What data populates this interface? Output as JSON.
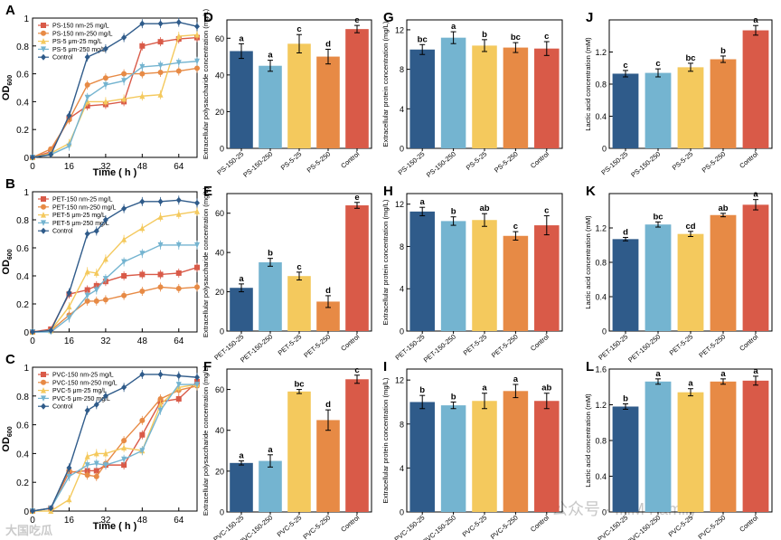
{
  "figure": {
    "colors": {
      "c1": "#2f5b8a",
      "c2": "#74b4d0",
      "c3": "#f4c95d",
      "c4": "#e78a45",
      "c5": "#d95a48"
    },
    "watermark": {
      "left": "大国吃瓜",
      "right": "公众号 · IHM Family"
    }
  },
  "chart_data": [
    {
      "panel": "A",
      "type": "line",
      "xlabel": "Time ( h )",
      "ylabel": "OD600",
      "ylim": [
        0,
        1.0
      ],
      "xlim": [
        0,
        72
      ],
      "xticks": [
        0,
        16,
        32,
        48,
        64
      ],
      "yticks": [
        0,
        0.2,
        0.4,
        0.6,
        0.8,
        1.0
      ],
      "x": [
        0,
        8,
        16,
        24,
        32,
        40,
        48,
        56,
        64,
        72
      ],
      "series": [
        {
          "name": "PS-150 nm-25 mg/L",
          "values": [
            0,
            0.04,
            0.28,
            0.37,
            0.38,
            0.4,
            0.8,
            0.83,
            0.85,
            0.86
          ]
        },
        {
          "name": "PS-150 nm-250 mg/L",
          "values": [
            0,
            0.06,
            0.27,
            0.52,
            0.57,
            0.6,
            0.6,
            0.61,
            0.62,
            0.64
          ]
        },
        {
          "name": "PS-5 μm-25 mg/L",
          "values": [
            0,
            0.03,
            0.1,
            0.4,
            0.4,
            0.42,
            0.44,
            0.45,
            0.87,
            0.88
          ]
        },
        {
          "name": "PS-5 μm-250 mg/L",
          "values": [
            0,
            0.02,
            0.08,
            0.43,
            0.52,
            0.55,
            0.65,
            0.66,
            0.68,
            0.69
          ]
        },
        {
          "name": "Control",
          "values": [
            0,
            0.02,
            0.3,
            0.72,
            0.78,
            0.86,
            0.96,
            0.96,
            0.97,
            0.94
          ]
        }
      ]
    },
    {
      "panel": "B",
      "type": "line",
      "xlabel": "",
      "ylabel": "OD600",
      "ylim": [
        0,
        1.0
      ],
      "xlim": [
        0,
        72
      ],
      "xticks": [
        0,
        16,
        32,
        48,
        64
      ],
      "yticks": [
        0,
        0.2,
        0.4,
        0.6,
        0.8,
        1.0
      ],
      "x": [
        0,
        8,
        16,
        24,
        28,
        32,
        40,
        48,
        56,
        64,
        72
      ],
      "series": [
        {
          "name": "PET-150 nm-25 mg/L",
          "values": [
            0,
            0.02,
            0.27,
            0.3,
            0.33,
            0.36,
            0.4,
            0.41,
            0.41,
            0.42,
            0.46
          ]
        },
        {
          "name": "PET-150 nm-250 mg/L",
          "values": [
            0,
            0.01,
            0.12,
            0.22,
            0.22,
            0.23,
            0.26,
            0.29,
            0.32,
            0.31,
            0.32
          ]
        },
        {
          "name": "PET-5 μm-25 mg/L",
          "values": [
            0,
            0.01,
            0.18,
            0.43,
            0.42,
            0.52,
            0.66,
            0.74,
            0.82,
            0.84,
            0.86
          ]
        },
        {
          "name": "PET-5 μm-250 mg/L",
          "values": [
            0,
            0.0,
            0.1,
            0.26,
            0.3,
            0.38,
            0.5,
            0.56,
            0.62,
            0.62,
            0.62
          ]
        },
        {
          "name": "Control",
          "values": [
            0,
            0.01,
            0.28,
            0.7,
            0.72,
            0.8,
            0.88,
            0.93,
            0.93,
            0.94,
            0.92
          ]
        }
      ]
    },
    {
      "panel": "C",
      "type": "line",
      "xlabel": "Time ( h )",
      "ylabel": "OD600",
      "ylim": [
        0,
        1.0
      ],
      "xlim": [
        0,
        72
      ],
      "xticks": [
        0,
        16,
        32,
        48,
        64
      ],
      "yticks": [
        0,
        0.2,
        0.4,
        0.6,
        0.8,
        1.0
      ],
      "x": [
        0,
        8,
        16,
        24,
        28,
        32,
        40,
        48,
        56,
        64,
        72
      ],
      "series": [
        {
          "name": "PVC-150 nm-25 mg/L",
          "values": [
            0,
            0.02,
            0.27,
            0.28,
            0.28,
            0.32,
            0.32,
            0.53,
            0.76,
            0.78,
            0.9
          ]
        },
        {
          "name": "PVC-150 nm-250 mg/L",
          "values": [
            0,
            0.02,
            0.28,
            0.25,
            0.24,
            0.33,
            0.49,
            0.63,
            0.78,
            0.84,
            0.87
          ]
        },
        {
          "name": "PVC-5 μm-25 mg/L",
          "values": [
            0,
            0.0,
            0.08,
            0.38,
            0.4,
            0.4,
            0.44,
            0.42,
            0.74,
            0.86,
            0.88
          ]
        },
        {
          "name": "PVC-5 μm-250 mg/L",
          "values": [
            0,
            0.02,
            0.24,
            0.32,
            0.33,
            0.32,
            0.36,
            0.42,
            0.7,
            0.88,
            0.88
          ]
        },
        {
          "name": "Control",
          "values": [
            0,
            0.02,
            0.3,
            0.7,
            0.74,
            0.8,
            0.86,
            0.95,
            0.95,
            0.94,
            0.93
          ]
        }
      ]
    },
    {
      "panel": "D",
      "type": "bar",
      "ylabel": "Extracellular polysaccharide concentration (mg/L)",
      "ylim": [
        0,
        70
      ],
      "yticks": [
        0,
        20,
        40,
        60
      ],
      "categories": [
        "PS-150-25",
        "PS-150-250",
        "PS-5-25",
        "PS-5-250",
        "Control"
      ],
      "values": [
        53,
        45,
        57,
        50,
        65
      ],
      "errors": [
        4,
        3,
        5,
        4,
        2
      ],
      "letters": [
        "a",
        "a",
        "c",
        "d",
        "e"
      ]
    },
    {
      "panel": "E",
      "type": "bar",
      "ylabel": "Extracellular polysaccharide concentration (mg/L)",
      "ylim": [
        0,
        70
      ],
      "yticks": [
        0,
        20,
        40,
        60
      ],
      "categories": [
        "PET-150-25",
        "PET-150-250",
        "PET-5-25",
        "PET-5-250",
        "Control"
      ],
      "values": [
        22,
        35,
        28,
        15,
        64
      ],
      "errors": [
        2,
        2,
        2,
        3,
        1.5
      ],
      "letters": [
        "a",
        "b",
        "c",
        "d",
        "e"
      ]
    },
    {
      "panel": "F",
      "type": "bar",
      "ylabel": "Extracellular polysaccharide concentration (mg/L)",
      "ylim": [
        0,
        70
      ],
      "yticks": [
        0,
        20,
        40,
        60
      ],
      "categories": [
        "PVC-150-25",
        "PVC-150-250",
        "PVC-5-25",
        "PVC-5-250",
        "Control"
      ],
      "values": [
        24,
        25,
        59,
        45,
        65
      ],
      "errors": [
        1,
        3,
        1,
        5,
        2
      ],
      "letters": [
        "a",
        "a",
        "bc",
        "d",
        "c"
      ]
    },
    {
      "panel": "G",
      "type": "bar",
      "ylabel": "Extracellular protein concentration (mg/L)",
      "ylim": [
        0,
        13
      ],
      "yticks": [
        0,
        4,
        8,
        12
      ],
      "categories": [
        "PS-150-25",
        "PS-150-250",
        "PS-5-25",
        "PS-5-250",
        "Control"
      ],
      "values": [
        10.0,
        11.2,
        10.4,
        10.2,
        10.1
      ],
      "errors": [
        0.5,
        0.6,
        0.6,
        0.5,
        0.7
      ],
      "letters": [
        "bc",
        "a",
        "b",
        "bc",
        "c"
      ]
    },
    {
      "panel": "H",
      "type": "bar",
      "ylabel": "Extracellular protein concentration (mg/L)",
      "ylim": [
        0,
        13
      ],
      "yticks": [
        0,
        4,
        8,
        12
      ],
      "categories": [
        "PET-150-25",
        "PET-150-250",
        "PET-5-25",
        "PET-5-250",
        "Control"
      ],
      "values": [
        11.3,
        10.4,
        10.5,
        9.0,
        10.0
      ],
      "errors": [
        0.4,
        0.4,
        0.6,
        0.4,
        0.9
      ],
      "letters": [
        "a",
        "b",
        "ab",
        "c",
        "c"
      ]
    },
    {
      "panel": "I",
      "type": "bar",
      "ylabel": "Extracellular protein concentration (mg/L)",
      "ylim": [
        0,
        13
      ],
      "yticks": [
        0,
        4,
        8,
        12
      ],
      "categories": [
        "PVC-150-25",
        "PVC-150-250",
        "PVC-5-25",
        "PVC-5-250",
        "Control"
      ],
      "values": [
        10.0,
        9.7,
        10.1,
        11.0,
        10.1
      ],
      "errors": [
        0.6,
        0.3,
        0.7,
        0.6,
        0.7
      ],
      "letters": [
        "b",
        "b",
        "a",
        "a",
        "ab"
      ]
    },
    {
      "panel": "J",
      "type": "bar",
      "ylabel": "Lactic acid concentration (mM)",
      "ylim": [
        0,
        1.6
      ],
      "yticks": [
        0,
        0.4,
        0.8,
        1.2
      ],
      "categories": [
        "PS-150-25",
        "PS-150-250",
        "PS-5-25",
        "PS-5-250",
        "Control"
      ],
      "values": [
        0.93,
        0.94,
        1.01,
        1.11,
        1.47
      ],
      "errors": [
        0.04,
        0.05,
        0.05,
        0.04,
        0.06
      ],
      "letters": [
        "c",
        "c",
        "bc",
        "b",
        "a"
      ]
    },
    {
      "panel": "K",
      "type": "bar",
      "ylabel": "Lactic acid concentration (mM)",
      "ylim": [
        0,
        1.6
      ],
      "yticks": [
        0,
        0.4,
        0.8,
        1.2
      ],
      "categories": [
        "PET-150-25",
        "PET-150-250",
        "PET-5-25",
        "PET-5-250",
        "Control"
      ],
      "values": [
        1.07,
        1.24,
        1.13,
        1.35,
        1.47
      ],
      "errors": [
        0.02,
        0.03,
        0.03,
        0.02,
        0.06
      ],
      "letters": [
        "d",
        "bc",
        "cd",
        "ab",
        "a"
      ]
    },
    {
      "panel": "L",
      "type": "bar",
      "ylabel": "Lactic acid concentration (mM)",
      "ylim": [
        0,
        1.6
      ],
      "yticks": [
        0,
        0.4,
        0.8,
        1.2,
        1.6
      ],
      "categories": [
        "PVC-150-25",
        "PVC-150-250",
        "PVC-5-25",
        "PVC-5-250",
        "Control"
      ],
      "values": [
        1.18,
        1.46,
        1.34,
        1.46,
        1.47
      ],
      "errors": [
        0.03,
        0.03,
        0.04,
        0.03,
        0.05
      ],
      "letters": [
        "b",
        "a",
        "a",
        "a",
        "a"
      ]
    }
  ]
}
